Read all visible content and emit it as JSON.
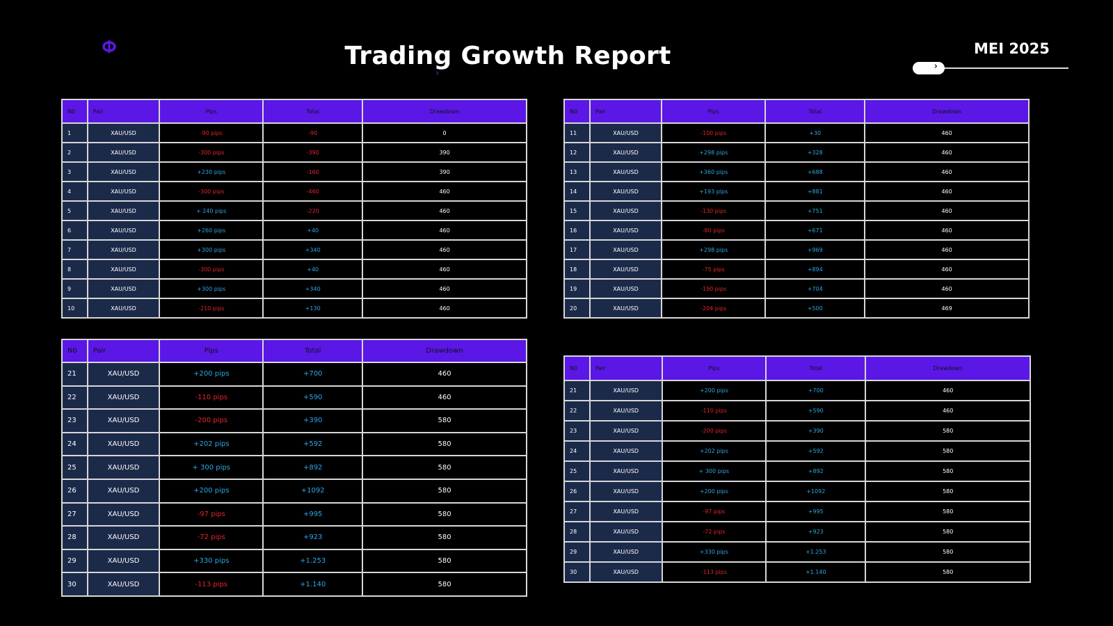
{
  "header": {
    "title": "Trading Growth Report",
    "month": "MEI 2025",
    "logo_icon": "phi-logo-icon"
  },
  "colors": {
    "header_bg": "#5b17e6",
    "pair_bg": "#1c2a4a",
    "negative": "#e3262c",
    "positive": "#2ea8e8"
  },
  "columns": [
    "N0",
    "Pair",
    "Pips",
    "Total",
    "Drawdown"
  ],
  "tables": [
    {
      "rows": [
        [
          "1",
          "XAU/USD",
          "-90 pips",
          "-90",
          "0"
        ],
        [
          "2",
          "XAU/USD",
          "-300 pips",
          "-390",
          "390"
        ],
        [
          "3",
          "XAU/USD",
          "+230 pips",
          "-160",
          "390"
        ],
        [
          "4",
          "XAU/USD",
          "-300 pips",
          "-460",
          "460"
        ],
        [
          "5",
          "XAU/USD",
          "+ 240 pips",
          "-220",
          "460"
        ],
        [
          "6",
          "XAU/USD",
          "+260 pips",
          "+40",
          "460"
        ],
        [
          "7",
          "XAU/USD",
          "+300 pips",
          "+340",
          "460"
        ],
        [
          "8",
          "XAU/USD",
          "-300 pips",
          "+40",
          "460"
        ],
        [
          "9",
          "XAU/USD",
          "+300 pips",
          "+340",
          "460"
        ],
        [
          "10",
          "XAU/USD",
          "-210 pips",
          "+130",
          "460"
        ]
      ]
    },
    {
      "rows": [
        [
          "11",
          "XAU/USD",
          "-100 pips",
          "+30",
          "460"
        ],
        [
          "12",
          "XAU/USD",
          "+298 pips",
          "+328",
          "460"
        ],
        [
          "13",
          "XAU/USD",
          "+360 pips",
          "+688",
          "460"
        ],
        [
          "14",
          "XAU/USD",
          "+193 pips",
          "+881",
          "460"
        ],
        [
          "15",
          "XAU/USD",
          "-130 pips",
          "+751",
          "460"
        ],
        [
          "16",
          "XAU/USD",
          "-80 pips",
          "+671",
          "460"
        ],
        [
          "17",
          "XAU/USD",
          "+298 pips",
          "+969",
          "460"
        ],
        [
          "18",
          "XAU/USD",
          "-75 pips",
          "+894",
          "460"
        ],
        [
          "19",
          "XAU/USD",
          "-190 pips",
          "+704",
          "460"
        ],
        [
          "20",
          "XAU/USD",
          "-204 pips",
          "+500",
          "469"
        ]
      ]
    },
    {
      "rows": [
        [
          "21",
          "XAU/USD",
          "+200 pips",
          "+700",
          "460"
        ],
        [
          "22",
          "XAU/USD",
          "-110 pips",
          "+590",
          "460"
        ],
        [
          "23",
          "XAU/USD",
          "-200 pips",
          "+390",
          "580"
        ],
        [
          "24",
          "XAU/USD",
          "+202 pips",
          "+592",
          "580"
        ],
        [
          "25",
          "XAU/USD",
          "+ 300 pips",
          "+892",
          "580"
        ],
        [
          "26",
          "XAU/USD",
          "+200 pips",
          "+1092",
          "580"
        ],
        [
          "27",
          "XAU/USD",
          "-97 pips",
          "+995",
          "580"
        ],
        [
          "28",
          "XAU/USD",
          "-72 pips",
          "+923",
          "580"
        ],
        [
          "29",
          "XAU/USD",
          "+330 pips",
          "+1.253",
          "580"
        ],
        [
          "30",
          "XAU/USD",
          "-113 pips",
          "+1.140",
          "580"
        ]
      ]
    },
    {
      "rows": [
        [
          "21",
          "XAU/USD",
          "+200 pips",
          "+700",
          "460"
        ],
        [
          "22",
          "XAU/USD",
          "-110 pips",
          "+590",
          "460"
        ],
        [
          "23",
          "XAU/USD",
          "-200 pips",
          "+390",
          "580"
        ],
        [
          "24",
          "XAU/USD",
          "+202 pips",
          "+592",
          "580"
        ],
        [
          "25",
          "XAU/USD",
          "+ 300 pips",
          "+892",
          "580"
        ],
        [
          "26",
          "XAU/USD",
          "+200 pips",
          "+1092",
          "580"
        ],
        [
          "27",
          "XAU/USD",
          "-97 pips",
          "+995",
          "580"
        ],
        [
          "28",
          "XAU/USD",
          "-72 pips",
          "+923",
          "580"
        ],
        [
          "29",
          "XAU/USD",
          "+330 pips",
          "+1.253",
          "580"
        ],
        [
          "30",
          "XAU/USD",
          "-113 pips",
          "+1.140",
          "580"
        ]
      ]
    }
  ]
}
